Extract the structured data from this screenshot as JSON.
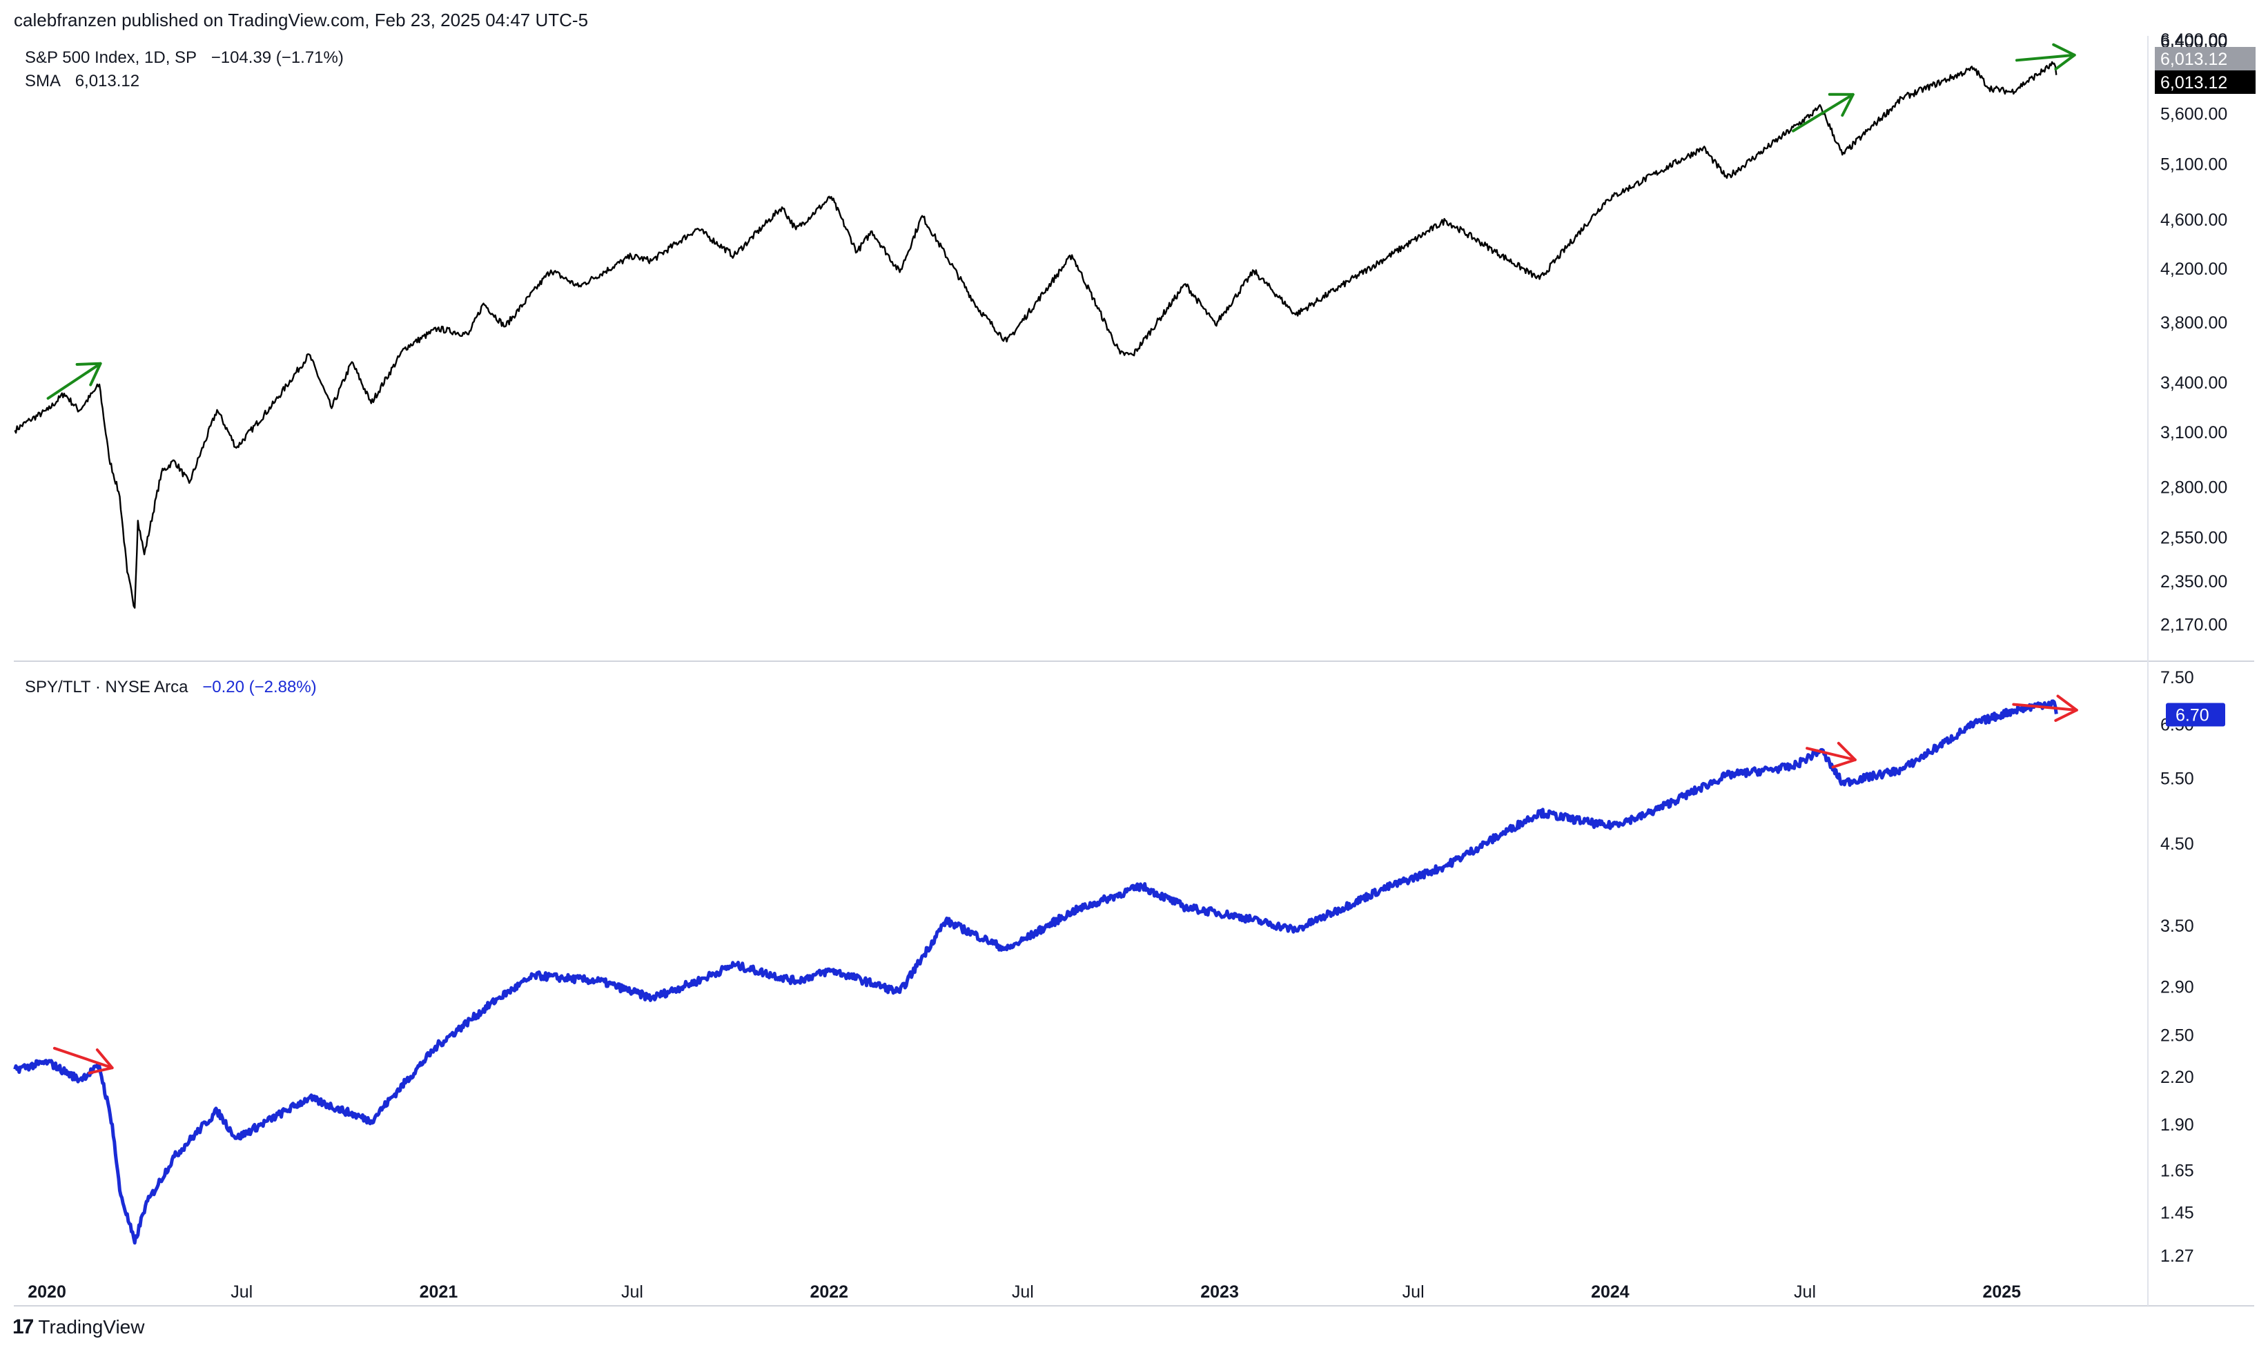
{
  "header": {
    "published": "calebfranzen published on TradingView.com, Feb 23, 2025 04:47 UTC-5"
  },
  "footer": {
    "brand": "TradingView"
  },
  "colors": {
    "spx_line": "#000000",
    "ratio_line": "#1a2bd6",
    "up_arrow": "#1a8a1a",
    "down_arrow": "#e8262b",
    "grid": "#e0e3eb"
  },
  "panes": {
    "top": {
      "legend_line1": {
        "name": "S&P 500 Index, 1D, SP",
        "change": "−104.39 (−1.71%)"
      },
      "legend_line2": {
        "name": "SMA",
        "value": "6,013.12"
      },
      "price_label_grey": "6,013.12",
      "price_label_black": "6,013.12",
      "axis_top_partial": "6,400.00"
    },
    "bottom": {
      "legend": {
        "name": "SPY/TLT · NYSE Arca",
        "change": "−0.20 (−2.88%)"
      },
      "price_label": "6.70",
      "axis_hidden_partial": "6.50"
    }
  },
  "x_axis": {
    "labels": [
      {
        "label": "2020",
        "date": "2020-01-01",
        "bold": true
      },
      {
        "label": "Jul",
        "date": "2020-07-01",
        "bold": false
      },
      {
        "label": "2021",
        "date": "2021-01-01",
        "bold": true
      },
      {
        "label": "Jul",
        "date": "2021-07-01",
        "bold": false
      },
      {
        "label": "2022",
        "date": "2022-01-01",
        "bold": true
      },
      {
        "label": "Jul",
        "date": "2022-07-01",
        "bold": false
      },
      {
        "label": "2023",
        "date": "2023-01-01",
        "bold": true
      },
      {
        "label": "Jul",
        "date": "2023-07-01",
        "bold": false
      },
      {
        "label": "2024",
        "date": "2024-01-01",
        "bold": true
      },
      {
        "label": "Jul",
        "date": "2024-07-01",
        "bold": false
      },
      {
        "label": "2025",
        "date": "2025-01-01",
        "bold": true
      }
    ],
    "range": [
      "2019-12-01",
      "2025-05-15"
    ]
  },
  "chart_data": [
    {
      "type": "line",
      "title": "S&P 500 Index, 1D, SP",
      "scale": "log",
      "ylim": [
        2100,
        6400
      ],
      "y_ticks": [
        "6,400.00",
        "5,600.00",
        "5,100.00",
        "4,600.00",
        "4,200.00",
        "3,800.00",
        "3,400.00",
        "3,100.00",
        "2,800.00",
        "2,550.00",
        "2,350.00",
        "2,170.00"
      ],
      "y_tick_values": [
        6400,
        5600,
        5100,
        4600,
        4200,
        3800,
        3400,
        3100,
        2800,
        2550,
        2350,
        2170
      ],
      "series": [
        {
          "name": "S&P 500 Index",
          "points": [
            [
              "2019-12-02",
              3110
            ],
            [
              "2019-12-16",
              3170
            ],
            [
              "2020-01-02",
              3230
            ],
            [
              "2020-01-17",
              3330
            ],
            [
              "2020-01-31",
              3225
            ],
            [
              "2020-02-19",
              3386
            ],
            [
              "2020-02-28",
              2955
            ],
            [
              "2020-03-09",
              2750
            ],
            [
              "2020-03-16",
              2390
            ],
            [
              "2020-03-23",
              2237
            ],
            [
              "2020-03-26",
              2630
            ],
            [
              "2020-04-01",
              2470
            ],
            [
              "2020-04-17",
              2875
            ],
            [
              "2020-04-29",
              2940
            ],
            [
              "2020-05-13",
              2820
            ],
            [
              "2020-06-08",
              3230
            ],
            [
              "2020-06-26",
              3010
            ],
            [
              "2020-07-31",
              3270
            ],
            [
              "2020-09-02",
              3580
            ],
            [
              "2020-09-23",
              3240
            ],
            [
              "2020-10-12",
              3530
            ],
            [
              "2020-10-30",
              3270
            ],
            [
              "2020-11-30",
              3620
            ],
            [
              "2020-12-31",
              3756
            ],
            [
              "2021-01-29",
              3715
            ],
            [
              "2021-02-12",
              3935
            ],
            [
              "2021-03-04",
              3770
            ],
            [
              "2021-04-16",
              4185
            ],
            [
              "2021-05-12",
              4060
            ],
            [
              "2021-06-30",
              4297
            ],
            [
              "2021-07-19",
              4260
            ],
            [
              "2021-08-31",
              4522
            ],
            [
              "2021-10-04",
              4300
            ],
            [
              "2021-11-18",
              4705
            ],
            [
              "2021-12-01",
              4515
            ],
            [
              "2022-01-03",
              4796
            ],
            [
              "2022-01-27",
              4330
            ],
            [
              "2022-02-10",
              4500
            ],
            [
              "2022-03-08",
              4170
            ],
            [
              "2022-03-29",
              4630
            ],
            [
              "2022-05-20",
              3900
            ],
            [
              "2022-06-16",
              3666
            ],
            [
              "2022-08-16",
              4305
            ],
            [
              "2022-09-30",
              3585
            ],
            [
              "2022-10-12",
              3577
            ],
            [
              "2022-11-30",
              4080
            ],
            [
              "2022-12-28",
              3783
            ],
            [
              "2023-02-02",
              4180
            ],
            [
              "2023-03-13",
              3855
            ],
            [
              "2023-07-31",
              4590
            ],
            [
              "2023-10-27",
              4117
            ],
            [
              "2023-12-29",
              4770
            ],
            [
              "2024-03-28",
              5254
            ],
            [
              "2024-04-19",
              4967
            ],
            [
              "2024-07-16",
              5667
            ],
            [
              "2024-08-05",
              5186
            ],
            [
              "2024-09-30",
              5762
            ],
            [
              "2024-12-06",
              6090
            ],
            [
              "2024-12-20",
              5870
            ],
            [
              "2025-01-10",
              5827
            ],
            [
              "2025-02-19",
              6144
            ],
            [
              "2025-02-21",
              6013
            ]
          ]
        }
      ],
      "annotations": [
        {
          "type": "arrow",
          "color": "up",
          "from": [
            "2020-01-02",
            3300
          ],
          "to": [
            "2020-02-20",
            3520
          ]
        },
        {
          "type": "arrow",
          "color": "up",
          "from": [
            "2024-06-20",
            5420
          ],
          "to": [
            "2024-08-15",
            5800
          ]
        },
        {
          "type": "arrow",
          "color": "up",
          "from": [
            "2025-01-15",
            6180
          ],
          "to": [
            "2025-03-10",
            6240
          ]
        }
      ]
    },
    {
      "type": "line",
      "title": "SPY/TLT · NYSE Arca",
      "scale": "log",
      "ylim": [
        1.22,
        7.6
      ],
      "y_ticks": [
        "7.50",
        "5.50",
        "4.50",
        "3.50",
        "2.90",
        "2.50",
        "2.20",
        "1.90",
        "1.65",
        "1.45",
        "1.27"
      ],
      "y_tick_values": [
        7.5,
        5.5,
        4.5,
        3.5,
        2.9,
        2.5,
        2.2,
        1.9,
        1.65,
        1.45,
        1.27
      ],
      "series": [
        {
          "name": "SPY/TLT",
          "points": [
            [
              "2019-12-02",
              2.25
            ],
            [
              "2020-01-02",
              2.3
            ],
            [
              "2020-01-31",
              2.18
            ],
            [
              "2020-02-19",
              2.27
            ],
            [
              "2020-03-02",
              1.9
            ],
            [
              "2020-03-09",
              1.55
            ],
            [
              "2020-03-23",
              1.32
            ],
            [
              "2020-04-02",
              1.48
            ],
            [
              "2020-04-29",
              1.72
            ],
            [
              "2020-06-08",
              1.98
            ],
            [
              "2020-06-26",
              1.82
            ],
            [
              "2020-09-02",
              2.06
            ],
            [
              "2020-10-30",
              1.92
            ],
            [
              "2020-12-31",
              2.42
            ],
            [
              "2021-02-26",
              2.8
            ],
            [
              "2021-04-01",
              3.0
            ],
            [
              "2021-06-01",
              2.95
            ],
            [
              "2021-07-19",
              2.8
            ],
            [
              "2021-08-31",
              2.95
            ],
            [
              "2021-10-04",
              3.1
            ],
            [
              "2021-12-01",
              2.95
            ],
            [
              "2022-01-03",
              3.05
            ],
            [
              "2022-03-08",
              2.85
            ],
            [
              "2022-04-20",
              3.55
            ],
            [
              "2022-06-16",
              3.25
            ],
            [
              "2022-08-16",
              3.65
            ],
            [
              "2022-10-20",
              3.95
            ],
            [
              "2022-11-30",
              3.7
            ],
            [
              "2023-01-18",
              3.6
            ],
            [
              "2023-03-13",
              3.45
            ],
            [
              "2023-05-31",
              3.9
            ],
            [
              "2023-07-31",
              4.2
            ],
            [
              "2023-10-27",
              4.95
            ],
            [
              "2023-12-29",
              4.75
            ],
            [
              "2024-02-01",
              4.9
            ],
            [
              "2024-04-19",
              5.55
            ],
            [
              "2024-06-20",
              5.7
            ],
            [
              "2024-07-16",
              6.0
            ],
            [
              "2024-08-05",
              5.42
            ],
            [
              "2024-09-30",
              5.65
            ],
            [
              "2024-12-06",
              6.5
            ],
            [
              "2025-01-13",
              6.78
            ],
            [
              "2025-02-19",
              6.95
            ],
            [
              "2025-02-21",
              6.7
            ]
          ]
        }
      ],
      "annotations": [
        {
          "type": "arrow",
          "color": "down",
          "from": [
            "2020-01-08",
            2.4
          ],
          "to": [
            "2020-03-02",
            2.26
          ]
        },
        {
          "type": "arrow",
          "color": "down",
          "from": [
            "2024-07-03",
            6.03
          ],
          "to": [
            "2024-08-17",
            5.82
          ]
        },
        {
          "type": "arrow",
          "color": "down",
          "from": [
            "2025-01-12",
            6.9
          ],
          "to": [
            "2025-03-12",
            6.78
          ]
        }
      ]
    }
  ]
}
